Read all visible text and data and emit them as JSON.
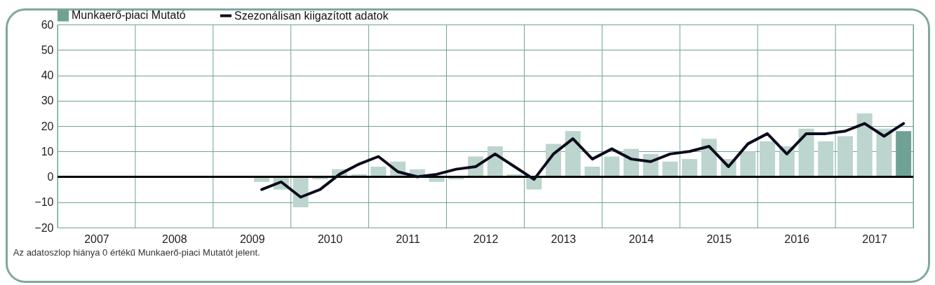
{
  "chart_data": {
    "type": "bar",
    "legend": "top",
    "grid": true,
    "x": [
      2009.625,
      2009.875,
      2010.125,
      2010.375,
      2010.625,
      2010.875,
      2011.125,
      2011.375,
      2011.625,
      2011.875,
      2012.125,
      2012.375,
      2012.625,
      2012.875,
      2013.125,
      2013.375,
      2013.625,
      2013.875,
      2014.125,
      2014.375,
      2014.625,
      2014.875,
      2015.125,
      2015.375,
      2015.625,
      2015.875,
      2016.125,
      2016.375,
      2016.625,
      2016.875,
      2017.125,
      2017.375,
      2017.625,
      2017.875
    ],
    "series": [
      {
        "name": "Munkaerő-piaci Mutató",
        "type": "bar",
        "color": "#6fa295",
        "colors": [
          "#bcd5ce",
          "#bcd5ce",
          "#bcd5ce",
          "#bcd5ce",
          "#bcd5ce",
          "#bcd5ce",
          "#bcd5ce",
          "#bcd5ce",
          "#bcd5ce",
          "#bcd5ce",
          "#bcd5ce",
          "#bcd5ce",
          "#bcd5ce",
          "#bcd5ce",
          "#bcd5ce",
          "#bcd5ce",
          "#bcd5ce",
          "#bcd5ce",
          "#bcd5ce",
          "#bcd5ce",
          "#bcd5ce",
          "#bcd5ce",
          "#bcd5ce",
          "#bcd5ce",
          "#bcd5ce",
          "#bcd5ce",
          "#bcd5ce",
          "#bcd5ce",
          "#bcd5ce",
          "#bcd5ce",
          "#bcd5ce",
          "#bcd5ce",
          "#bcd5ce",
          "#6fa295"
        ],
        "values": [
          -2,
          -5,
          -12,
          -1,
          3,
          1,
          4,
          6,
          3,
          -2,
          -1,
          8,
          12,
          1,
          -5,
          13,
          18,
          4,
          8,
          11,
          9,
          6,
          7,
          15,
          7,
          10,
          14,
          12,
          19,
          14,
          16,
          25,
          19,
          18
        ]
      },
      {
        "name": "Szezonálisan kiigazított adatok",
        "type": "line",
        "color": "#0b0b1c",
        "values": [
          -5,
          -2,
          -8,
          -5,
          1,
          5,
          8,
          2,
          0,
          1,
          3,
          4,
          9,
          4,
          -1,
          9,
          15,
          7,
          11,
          7,
          6,
          9,
          10,
          12,
          4,
          13,
          17,
          9,
          17,
          17,
          18,
          21,
          16,
          21
        ]
      }
    ],
    "xlim": [
      2007,
      2018
    ],
    "xticks": [
      {
        "value": 2007,
        "label": null
      },
      {
        "value": 2007.5,
        "label": "2007"
      },
      {
        "value": 2008,
        "label": null
      },
      {
        "value": 2008.5,
        "label": "2008"
      },
      {
        "value": 2009,
        "label": null
      },
      {
        "value": 2009.5,
        "label": "2009"
      },
      {
        "value": 2010,
        "label": null
      },
      {
        "value": 2010.5,
        "label": "2010"
      },
      {
        "value": 2011,
        "label": null
      },
      {
        "value": 2011.5,
        "label": "2011"
      },
      {
        "value": 2012,
        "label": null
      },
      {
        "value": 2012.5,
        "label": "2012"
      },
      {
        "value": 2013,
        "label": null
      },
      {
        "value": 2013.5,
        "label": "2013"
      },
      {
        "value": 2014,
        "label": null
      },
      {
        "value": 2014.5,
        "label": "2014"
      },
      {
        "value": 2015,
        "label": null
      },
      {
        "value": 2015.5,
        "label": "2015"
      },
      {
        "value": 2016,
        "label": null
      },
      {
        "value": 2016.5,
        "label": "2016"
      },
      {
        "value": 2017,
        "label": null
      },
      {
        "value": 2017.5,
        "label": "2017"
      },
      {
        "value": 2018,
        "label": null
      }
    ],
    "ylim": [
      -20,
      60
    ],
    "yticks": [
      -20,
      -10,
      0,
      10,
      20,
      30,
      40,
      50,
      60
    ],
    "ref_lines": [
      {
        "axis": "y",
        "value": 0,
        "color": "#000000"
      }
    ],
    "annotations": [
      "Az adatoszlop hiánya 0 értékű Munkaerő-piaci Mutatót jelent."
    ]
  }
}
